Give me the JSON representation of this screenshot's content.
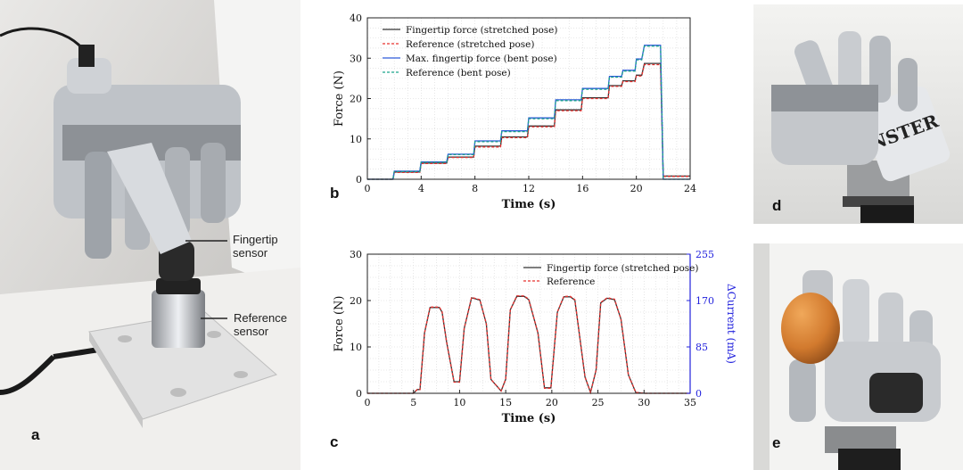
{
  "figure": {
    "panel_labels": {
      "a": "a",
      "b": "b",
      "c": "c",
      "d": "d",
      "e": "e"
    },
    "annotations": {
      "fingertip_sensor": [
        "Fingertip",
        "sensor"
      ],
      "reference_sensor": [
        "Reference",
        "sensor"
      ]
    },
    "photo_a": {
      "depicts": "robotic-hand-pressing-sensor"
    },
    "photo_d": {
      "depicts": "robotic-hand-gripping-can",
      "can_text": "NSTER"
    },
    "photo_e": {
      "depicts": "robotic-hand-holding-egg"
    }
  },
  "chart_data": [
    {
      "id": "b",
      "type": "line",
      "xlabel": "Time (s)",
      "ylabel": "Force (N)",
      "xlim": [
        0,
        24
      ],
      "ylim": [
        0,
        40
      ],
      "xticks": [
        0,
        4,
        8,
        12,
        16,
        20,
        24
      ],
      "yticks": [
        0,
        10,
        20,
        30,
        40
      ],
      "grid": true,
      "legend_position": "top-left",
      "series": [
        {
          "name": "Fingertip force (stretched pose)",
          "color": "#333333",
          "style": "solid",
          "x": [
            0,
            1.9,
            2,
            3.9,
            4,
            5.9,
            6,
            7.9,
            8,
            9.9,
            10,
            11.9,
            12,
            13.9,
            14,
            15.9,
            16,
            17.9,
            18,
            18.9,
            19,
            19.9,
            20,
            20.4,
            20.6,
            21.8,
            22,
            22.4,
            24
          ],
          "y": [
            0,
            0,
            1.8,
            1.8,
            4,
            4,
            5.5,
            5.5,
            8.2,
            8.2,
            10.5,
            10.5,
            13.2,
            13.2,
            17.2,
            17.2,
            20.2,
            20.2,
            23.2,
            23.2,
            24.4,
            24.4,
            25.8,
            25.8,
            28.7,
            28.7,
            0.8,
            0.8,
            0.8
          ]
        },
        {
          "name": "Reference (stretched pose)",
          "color": "#e8312f",
          "style": "dashed",
          "x": [
            0,
            1.9,
            2,
            3.9,
            4,
            5.9,
            6,
            7.9,
            8,
            9.9,
            10,
            11.9,
            12,
            13.9,
            14,
            15.9,
            16,
            17.9,
            18,
            18.9,
            19,
            19.9,
            20,
            20.4,
            20.6,
            21.8,
            22,
            22.4,
            24
          ],
          "y": [
            0,
            0,
            1.7,
            1.7,
            3.9,
            3.9,
            5.4,
            5.4,
            8,
            8,
            10.3,
            10.3,
            13,
            13,
            17,
            17,
            20,
            20,
            23,
            23,
            24.2,
            24.2,
            25.6,
            25.6,
            28.4,
            28.4,
            0.7,
            0.7,
            0.7
          ]
        },
        {
          "name": "Max. fingertip force (bent pose)",
          "color": "#2f5bd9",
          "style": "solid",
          "x": [
            0,
            1.9,
            2,
            3.9,
            4,
            5.9,
            6,
            7.9,
            8,
            9.9,
            10,
            11.9,
            12,
            13.9,
            14,
            15.9,
            16,
            17.9,
            18,
            18.9,
            19,
            19.9,
            20,
            20.4,
            20.6,
            21.8,
            22,
            22.4,
            24
          ],
          "y": [
            0,
            0,
            2,
            2,
            4.3,
            4.3,
            6.2,
            6.2,
            9.5,
            9.5,
            12,
            12,
            15.2,
            15.2,
            19.7,
            19.7,
            22.5,
            22.5,
            25.5,
            25.5,
            27,
            27,
            29.8,
            29.8,
            33.2,
            33.2,
            0,
            0,
            0
          ]
        },
        {
          "name": "Reference (bent pose)",
          "color": "#1aa38a",
          "style": "dashed",
          "x": [
            0,
            1.9,
            2,
            3.9,
            4,
            5.9,
            6,
            7.9,
            8,
            9.9,
            10,
            11.9,
            12,
            13.9,
            14,
            15.9,
            16,
            17.9,
            18,
            18.9,
            19,
            19.9,
            20,
            20.4,
            20.6,
            21.8,
            22,
            22.4,
            24
          ],
          "y": [
            0,
            0,
            1.9,
            1.9,
            4.2,
            4.2,
            6.1,
            6.1,
            9.3,
            9.3,
            11.8,
            11.8,
            15,
            15,
            19.5,
            19.5,
            22.3,
            22.3,
            25.3,
            25.3,
            26.8,
            26.8,
            29.6,
            29.6,
            33,
            33,
            0,
            0,
            0
          ]
        }
      ]
    },
    {
      "id": "c",
      "type": "line",
      "xlabel": "Time (s)",
      "ylabel": "Force (N)",
      "y2label": "ΔCurrent (mA)",
      "xlim": [
        0,
        35
      ],
      "ylim": [
        0,
        30
      ],
      "y2lim": [
        0,
        255
      ],
      "xticks": [
        0,
        5,
        10,
        15,
        20,
        25,
        30,
        35
      ],
      "yticks": [
        0,
        10,
        20,
        30
      ],
      "y2ticks": [
        0,
        85,
        170,
        255
      ],
      "grid": true,
      "legend_position": "top-right",
      "series": [
        {
          "name": "Fingertip force (stretched pose)",
          "color": "#333333",
          "style": "solid",
          "x": [
            0,
            5,
            5.4,
            5.7,
            6.2,
            6.8,
            7.8,
            8.1,
            8.6,
            9.4,
            10,
            10.5,
            11.3,
            12.2,
            12.9,
            13.4,
            14.5,
            15,
            15.5,
            16.2,
            17,
            17.5,
            18.5,
            19.2,
            19.9,
            20.6,
            21.3,
            22,
            22.5,
            23.6,
            24.2,
            24.8,
            25.3,
            26,
            26.8,
            27.5,
            28.3,
            29.1,
            29.6,
            30,
            35
          ],
          "y": [
            0,
            0,
            0.8,
            0.8,
            13,
            18.5,
            18.5,
            17.5,
            11,
            2.5,
            2.5,
            14,
            20.6,
            20.1,
            15,
            3,
            0.5,
            3,
            18,
            20.9,
            20.9,
            20.2,
            13,
            1.2,
            1.2,
            17.5,
            20.8,
            20.8,
            20.1,
            3.5,
            0.2,
            5,
            19.5,
            20.5,
            20.2,
            16,
            4,
            0.2,
            0.1,
            0,
            0
          ]
        },
        {
          "name": "Reference",
          "color": "#e8312f",
          "style": "dashed",
          "x": [
            0,
            5,
            5.4,
            5.7,
            6.2,
            6.8,
            7.8,
            8.1,
            8.6,
            9.4,
            10,
            10.5,
            11.3,
            12.2,
            12.9,
            13.4,
            14.5,
            15,
            15.5,
            16.2,
            17,
            17.5,
            18.5,
            19.2,
            19.9,
            20.6,
            21.3,
            22,
            22.5,
            23.6,
            24.2,
            24.8,
            25.3,
            26,
            26.8,
            27.5,
            28.3,
            29.1,
            29.6,
            30,
            35
          ],
          "y": [
            0,
            0,
            0.8,
            0.8,
            13,
            18.6,
            18.6,
            17.6,
            11,
            2.4,
            2.4,
            14,
            20.7,
            20.2,
            15,
            3,
            0.5,
            3,
            18,
            21,
            21,
            20.3,
            13,
            1.1,
            1.1,
            17.5,
            20.9,
            20.9,
            20.2,
            3.5,
            0.2,
            5,
            19.6,
            20.6,
            20.3,
            16,
            4,
            0.2,
            0.1,
            0,
            0
          ]
        }
      ]
    }
  ]
}
